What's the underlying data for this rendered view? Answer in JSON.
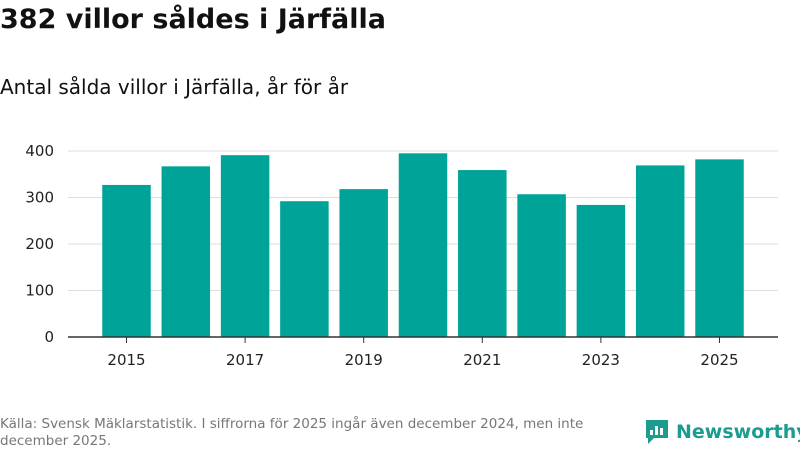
{
  "title": "382 villor såldes i Järfälla",
  "subtitle": "Antal sålda villor i Järfälla, år för år",
  "footer": "Källa: Svensk Mäklarstatistik. I siffrorna för 2025 ingår även december 2024, men inte december 2025.",
  "logo": {
    "text": "Newsworthy",
    "icon": "newsworthy-logo-icon",
    "color": "#1a9c8f"
  },
  "colors": {
    "bar": "#00a398",
    "grid": "#dddddd",
    "axis": "#333333"
  },
  "chart_data": {
    "type": "bar",
    "categories": [
      "2015",
      "2016",
      "2017",
      "2018",
      "2019",
      "2020",
      "2021",
      "2022",
      "2023",
      "2024",
      "2025"
    ],
    "values": [
      327,
      367,
      391,
      292,
      318,
      395,
      359,
      307,
      284,
      369,
      382
    ],
    "xticks": [
      "2015",
      "2017",
      "2019",
      "2021",
      "2023",
      "2025"
    ],
    "yticks": [
      0,
      100,
      200,
      300,
      400
    ],
    "ylim": [
      0,
      400
    ],
    "title": "382 villor såldes i Järfälla",
    "xlabel": "",
    "ylabel": ""
  }
}
